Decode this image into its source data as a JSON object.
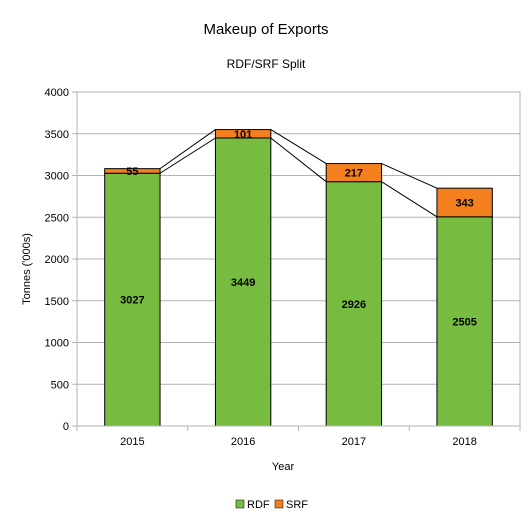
{
  "chart_data": {
    "type": "bar",
    "stacked": true,
    "title": "Makeup of Exports",
    "subtitle": "RDF/SRF Split",
    "xlabel": "Year",
    "ylabel": "Tonnes ('000s)",
    "categories": [
      "2015",
      "2016",
      "2017",
      "2018"
    ],
    "yticks": [
      "0",
      "500",
      "1000",
      "1500",
      "2000",
      "2500",
      "3000",
      "3500",
      "4000"
    ],
    "ylim": [
      0,
      4000
    ],
    "grid": true,
    "legend_position": "bottom",
    "series": [
      {
        "name": "RDF",
        "color": "#77bc41",
        "values": [
          3027,
          3449,
          2926,
          2505
        ],
        "labels": [
          "3027",
          "3449",
          "2926",
          "2505"
        ]
      },
      {
        "name": "SRF",
        "color": "#f47f1f",
        "values": [
          55,
          101,
          217,
          343
        ],
        "labels": [
          "55",
          "101",
          "217",
          "343"
        ]
      }
    ],
    "series_lines": true
  }
}
